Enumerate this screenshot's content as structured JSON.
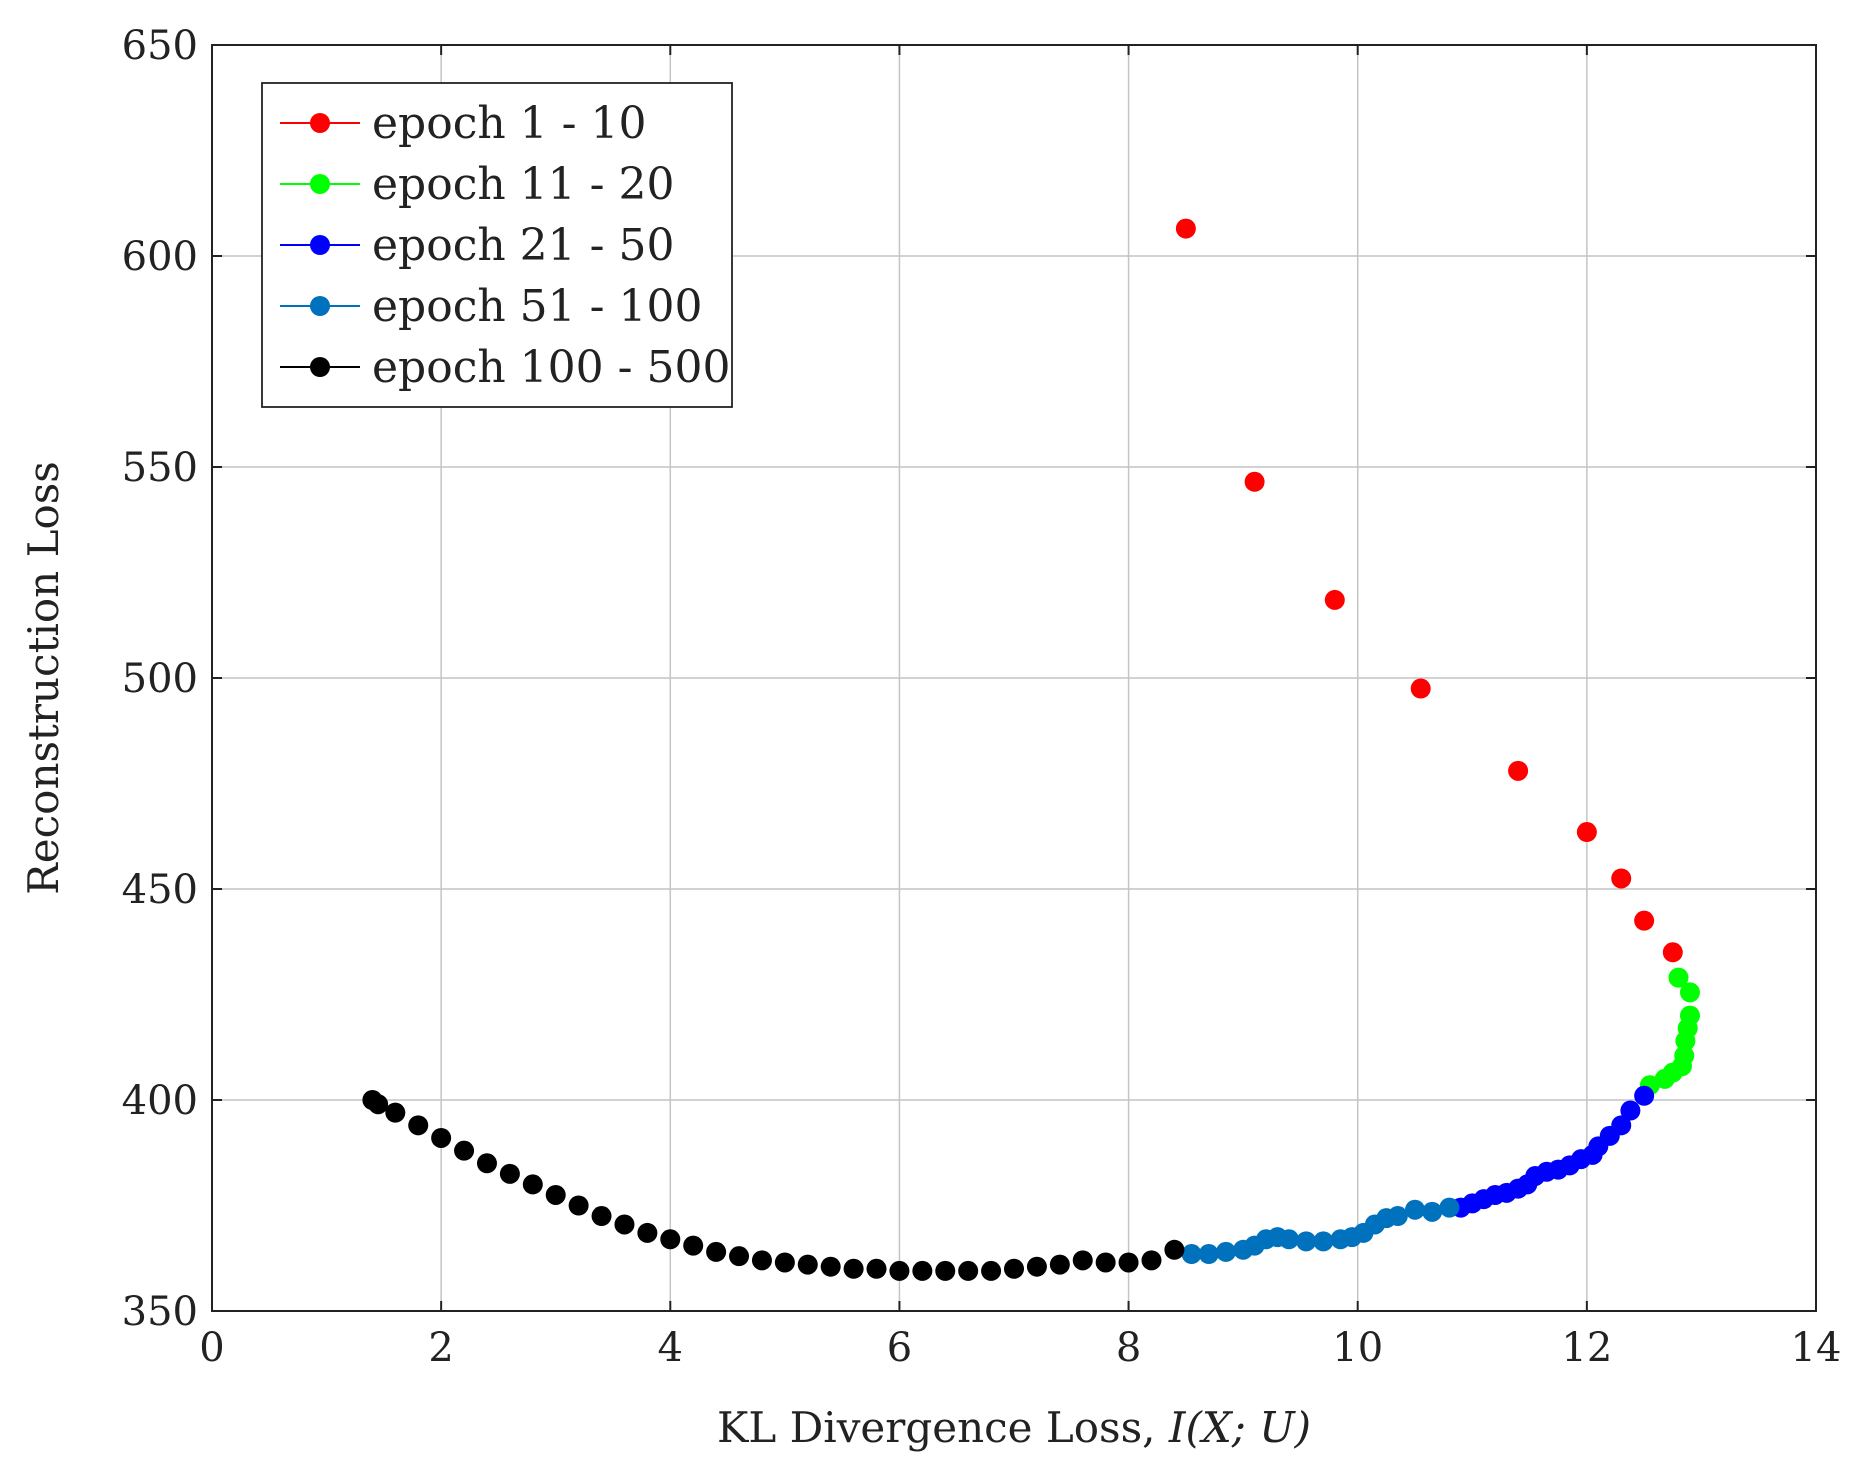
{
  "chart_data": {
    "type": "scatter",
    "title": "",
    "xlabel": "KL Divergence Loss, ",
    "xlabel_math": "I(X; U)",
    "ylabel": "Reconstruction Loss",
    "xlim": [
      0,
      14
    ],
    "ylim": [
      350,
      650
    ],
    "xticks": [
      0,
      2,
      4,
      6,
      8,
      10,
      12,
      14
    ],
    "yticks": [
      350,
      400,
      450,
      500,
      550,
      600,
      650
    ],
    "grid": true,
    "legend_position": "top-left",
    "series": [
      {
        "name": "epoch 1 - 10",
        "color": "#ff0000",
        "x": [
          8.5,
          9.1,
          9.8,
          10.55,
          11.4,
          12.0,
          12.3,
          12.5,
          12.75
        ],
        "y": [
          606.5,
          546.5,
          518.5,
          497.5,
          478,
          463.5,
          452.5,
          442.5,
          435
        ]
      },
      {
        "name": "epoch 11 - 20",
        "color": "#00ff00",
        "x": [
          12.8,
          12.9,
          12.9,
          12.88,
          12.86,
          12.85,
          12.83,
          12.75,
          12.68,
          12.55
        ],
        "y": [
          429,
          425.5,
          420,
          417,
          414,
          410.5,
          408,
          406.5,
          405,
          403.5
        ]
      },
      {
        "name": "epoch 21 - 50",
        "color": "#0000ff",
        "x": [
          12.5,
          12.38,
          12.3,
          12.2,
          12.1,
          12.05,
          11.95,
          11.85,
          11.75,
          11.65,
          11.55,
          11.48,
          11.4,
          11.3,
          11.2,
          11.1,
          11.0,
          10.9
        ],
        "y": [
          401,
          397.5,
          394,
          391.5,
          389,
          387,
          386,
          384.5,
          383.5,
          383,
          382,
          380,
          379,
          378,
          377.5,
          376.5,
          375.5,
          374.5
        ]
      },
      {
        "name": "epoch 51 - 100",
        "color": "#0072bd",
        "x": [
          10.8,
          10.65,
          10.5,
          10.35,
          10.25,
          10.15,
          10.05,
          9.95,
          9.85,
          9.7,
          9.55,
          9.4,
          9.3,
          9.2,
          9.1,
          9.0,
          8.85,
          8.7,
          8.55
        ],
        "y": [
          374.5,
          373.5,
          374,
          372.5,
          372,
          370.5,
          368.5,
          367.5,
          367,
          366.5,
          366.5,
          367,
          367.5,
          367,
          365.5,
          364.5,
          364,
          363.5,
          363.5
        ]
      },
      {
        "name": "epoch 100 - 500",
        "color": "#000000",
        "x": [
          8.4,
          8.2,
          8.0,
          7.8,
          7.6,
          7.4,
          7.2,
          7.0,
          6.8,
          6.6,
          6.4,
          6.2,
          6.0,
          5.8,
          5.6,
          5.4,
          5.2,
          5.0,
          4.8,
          4.6,
          4.4,
          4.2,
          4.0,
          3.8,
          3.6,
          3.4,
          3.2,
          3.0,
          2.8,
          2.6,
          2.4,
          2.2,
          2.0,
          1.8,
          1.6,
          1.45,
          1.4
        ],
        "y": [
          364.5,
          362,
          361.5,
          361.5,
          362,
          361,
          360.5,
          360,
          359.5,
          359.5,
          359.5,
          359.5,
          359.5,
          360,
          360,
          360.5,
          361,
          361.5,
          362,
          363,
          364,
          365.5,
          367,
          368.5,
          370.5,
          372.5,
          375,
          377.5,
          380,
          382.5,
          385,
          388,
          391,
          394,
          397,
          399,
          400
        ]
      }
    ]
  }
}
